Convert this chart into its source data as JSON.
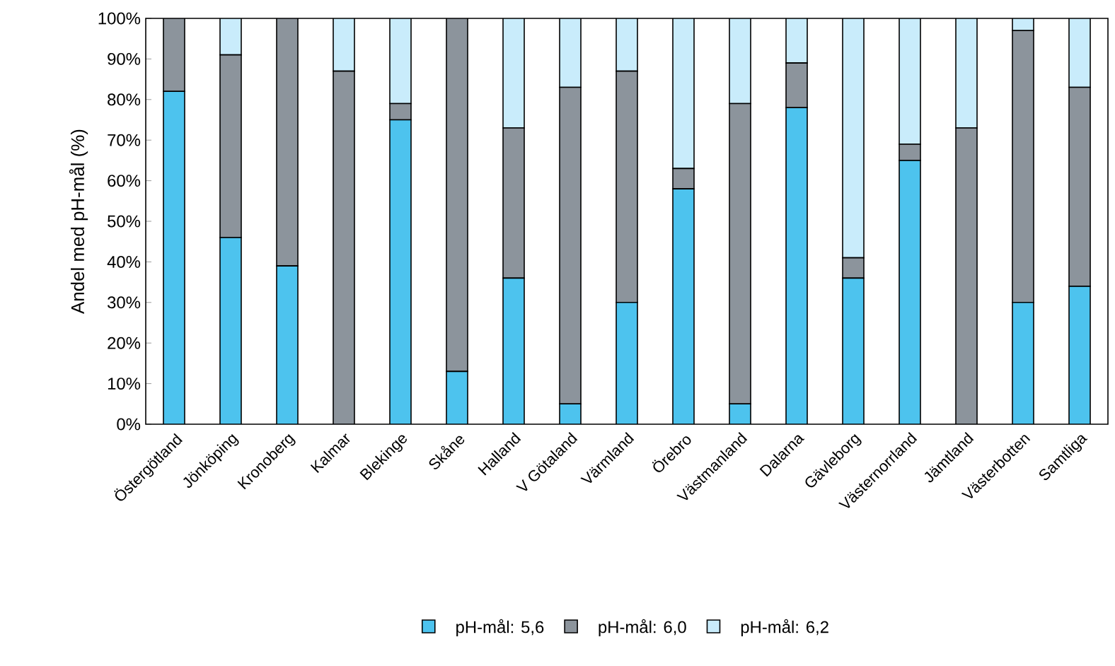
{
  "chart_data": {
    "type": "bar",
    "stacked": true,
    "ylabel": "Andel med pH-mål (%)",
    "categories": [
      "Östergötland",
      "Jönköping",
      "Kronoberg",
      "Kalmar",
      "Blekinge",
      "Skåne",
      "Halland",
      "V Götaland",
      "Värmland",
      "Örebro",
      "Västmanland",
      "Dalarna",
      "Gävleborg",
      "Västernorrland",
      "Jämtland",
      "Västerbotten",
      "Samtliga"
    ],
    "series": [
      {
        "name": "pH-mål: 5,6",
        "color": "#4dc3ee",
        "values": [
          82,
          46,
          39,
          0,
          75,
          13,
          36,
          5,
          30,
          58,
          5,
          78,
          36,
          65,
          0,
          30,
          34
        ]
      },
      {
        "name": "pH-mål: 6,0",
        "color": "#8c949c",
        "values": [
          18,
          45,
          61,
          87,
          4,
          87,
          37,
          78,
          57,
          5,
          74,
          11,
          5,
          4,
          73,
          67,
          49
        ]
      },
      {
        "name": "pH-mål: 6,2",
        "color": "#c9ecfb",
        "values": [
          0,
          9,
          0,
          13,
          21,
          0,
          27,
          17,
          13,
          37,
          21,
          11,
          59,
          31,
          27,
          3,
          17
        ]
      }
    ],
    "ylim": [
      0,
      100
    ],
    "yticks": [
      {
        "value": 0,
        "label": "0%"
      },
      {
        "value": 10,
        "label": "10%"
      },
      {
        "value": 20,
        "label": "20%"
      },
      {
        "value": 30,
        "label": "30%"
      },
      {
        "value": 40,
        "label": "40%"
      },
      {
        "value": 50,
        "label": "50%"
      },
      {
        "value": 60,
        "label": "60%"
      },
      {
        "value": 70,
        "label": "70%"
      },
      {
        "value": 80,
        "label": "80%"
      },
      {
        "value": 90,
        "label": "90%"
      },
      {
        "value": 100,
        "label": "100%"
      }
    ],
    "grid": false,
    "legend": "bottom"
  }
}
